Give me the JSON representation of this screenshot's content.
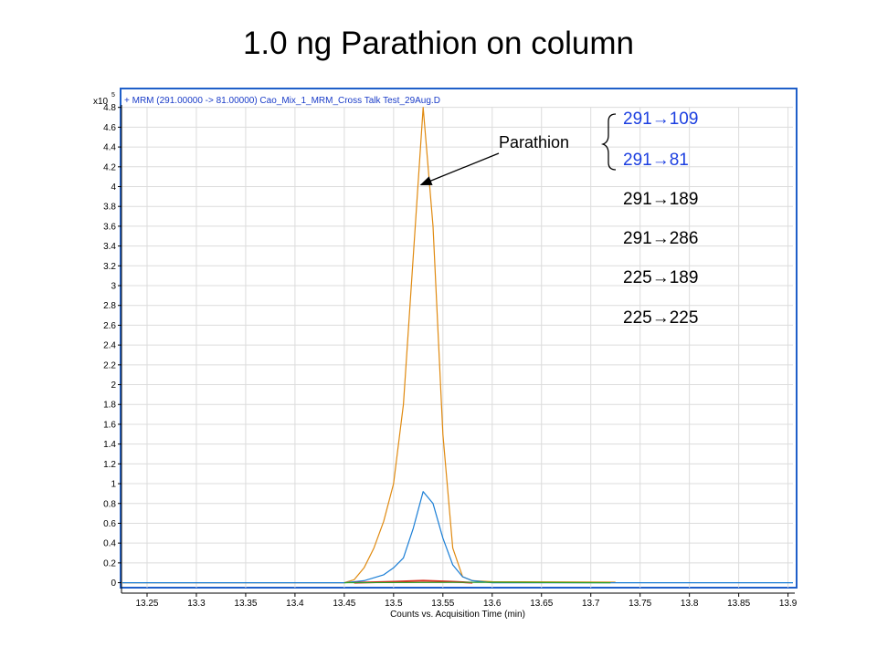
{
  "title": "1.0 ng Parathion on column",
  "colors": {
    "transition_highlight": "#1c3fe0",
    "transition_default": "#000000",
    "frame": "#1f5fc9"
  },
  "chart_data": {
    "type": "line",
    "header_text": "+ MRM (291.00000 -> 81.00000) Cao_Mix_1_MRM_Cross Talk Test_29Aug.D",
    "y_multiplier": {
      "base": "x10",
      "exponent": "5"
    },
    "xlabel": "Counts vs. Acquisition Time (min)",
    "ylabel": "",
    "xlim": [
      13.225,
      13.905
    ],
    "ylim": [
      -0.05,
      4.88
    ],
    "x_ticks": [
      {
        "v": 13.25,
        "label": "13.25"
      },
      {
        "v": 13.3,
        "label": "13.3"
      },
      {
        "v": 13.35,
        "label": "13.35"
      },
      {
        "v": 13.4,
        "label": "13.4"
      },
      {
        "v": 13.45,
        "label": "13.45"
      },
      {
        "v": 13.5,
        "label": "13.5"
      },
      {
        "v": 13.55,
        "label": "13.55"
      },
      {
        "v": 13.6,
        "label": "13.6"
      },
      {
        "v": 13.65,
        "label": "13.65"
      },
      {
        "v": 13.7,
        "label": "13.7"
      },
      {
        "v": 13.75,
        "label": "13.75"
      },
      {
        "v": 13.8,
        "label": "13.8"
      },
      {
        "v": 13.85,
        "label": "13.85"
      },
      {
        "v": 13.9,
        "label": "13.9"
      }
    ],
    "y_ticks": [
      {
        "v": 0,
        "label": "0"
      },
      {
        "v": 0.2,
        "label": "0.2"
      },
      {
        "v": 0.4,
        "label": "0.4"
      },
      {
        "v": 0.6,
        "label": "0.6"
      },
      {
        "v": 0.8,
        "label": "0.8"
      },
      {
        "v": 1,
        "label": "1"
      },
      {
        "v": 1.2,
        "label": "1.2"
      },
      {
        "v": 1.4,
        "label": "1.4"
      },
      {
        "v": 1.6,
        "label": "1.6"
      },
      {
        "v": 1.8,
        "label": "1.8"
      },
      {
        "v": 2,
        "label": "2"
      },
      {
        "v": 2.2,
        "label": "2.2"
      },
      {
        "v": 2.4,
        "label": "2.4"
      },
      {
        "v": 2.6,
        "label": "2.6"
      },
      {
        "v": 2.8,
        "label": "2.8"
      },
      {
        "v": 3,
        "label": "3"
      },
      {
        "v": 3.2,
        "label": "3.2"
      },
      {
        "v": 3.4,
        "label": "3.4"
      },
      {
        "v": 3.6,
        "label": "3.6"
      },
      {
        "v": 3.8,
        "label": "3.8"
      },
      {
        "v": 4,
        "label": "4"
      },
      {
        "v": 4.2,
        "label": "4.2"
      },
      {
        "v": 4.4,
        "label": "4.4"
      },
      {
        "v": 4.6,
        "label": "4.6"
      },
      {
        "v": 4.8,
        "label": "4.8"
      }
    ],
    "grid": true,
    "series": [
      {
        "color": "#e08a10",
        "x": [
          13.225,
          13.45,
          13.46,
          13.47,
          13.48,
          13.49,
          13.5,
          13.51,
          13.52,
          13.53,
          13.54,
          13.55,
          13.56,
          13.57,
          13.58,
          13.6,
          13.725
        ],
        "y": [
          0.0,
          0.0,
          0.03,
          0.15,
          0.35,
          0.62,
          1.0,
          1.8,
          3.3,
          4.8,
          3.6,
          1.5,
          0.35,
          0.06,
          0.02,
          0.01,
          0.005
        ]
      },
      {
        "color": "#1a7ed6",
        "x": [
          13.225,
          13.45,
          13.47,
          13.49,
          13.5,
          13.51,
          13.52,
          13.53,
          13.54,
          13.55,
          13.56,
          13.57,
          13.58,
          13.6,
          13.905
        ],
        "y": [
          0.0,
          0.0,
          0.02,
          0.08,
          0.15,
          0.25,
          0.55,
          0.92,
          0.8,
          0.45,
          0.18,
          0.06,
          0.02,
          0.0,
          0.0
        ]
      },
      {
        "color": "#d93020",
        "x": [
          13.46,
          13.5,
          13.53,
          13.56,
          13.58
        ],
        "y": [
          0.0,
          0.01,
          0.02,
          0.01,
          0.0
        ]
      },
      {
        "color": "#2aa02a",
        "x": [
          13.45,
          13.6,
          13.72
        ],
        "y": [
          0.0,
          0.004,
          0.0
        ]
      }
    ],
    "legend": [
      {
        "label": "291→109",
        "color": "#1c3fe0"
      },
      {
        "label": "291→81",
        "color": "#1c3fe0"
      },
      {
        "label": "291→189",
        "color": "#000000"
      },
      {
        "label": "291→286",
        "color": "#000000"
      },
      {
        "label": "225→189",
        "color": "#000000"
      },
      {
        "label": "225→225",
        "color": "#000000"
      }
    ],
    "annotation": {
      "text": "Parathion",
      "target_x": 13.525,
      "target_y": 4.0
    }
  }
}
